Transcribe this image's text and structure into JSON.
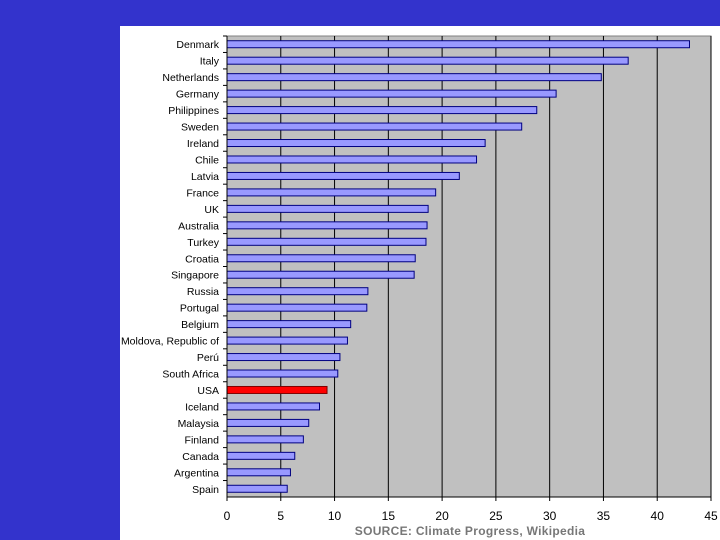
{
  "chart_data": {
    "type": "bar",
    "orientation": "horizontal",
    "title": "",
    "xlabel": "",
    "ylabel": "",
    "categories": [
      "Denmark",
      "Italy",
      "Netherlands",
      "Germany",
      "Philippines",
      "Sweden",
      "Ireland",
      "Chile",
      "Latvia",
      "France",
      "UK",
      "Australia",
      "Turkey",
      "Croatia",
      "Singapore",
      "Russia",
      "Portugal",
      "Belgium",
      "Moldova, Republic of",
      "Perú",
      "South Africa",
      "USA",
      "Iceland",
      "Malaysia",
      "Finland",
      "Canada",
      "Argentina",
      "Spain"
    ],
    "values": [
      43.0,
      37.3,
      34.8,
      30.6,
      28.8,
      27.4,
      24.0,
      23.2,
      21.6,
      19.4,
      18.7,
      18.6,
      18.5,
      17.5,
      17.4,
      13.1,
      13.0,
      11.5,
      11.2,
      10.5,
      10.3,
      9.3,
      8.6,
      7.6,
      7.1,
      6.3,
      5.9,
      5.6
    ],
    "highlight_category": "USA",
    "xlim": [
      0,
      45
    ],
    "xticks": [
      0,
      5,
      10,
      15,
      20,
      25,
      30,
      35,
      40,
      45
    ],
    "grid": "vertical",
    "legend": "none",
    "source": "SOURCE: Climate Progress, Wikipedia",
    "colors": {
      "bar": "#9999ff",
      "bar_highlight": "#ff0000",
      "bar_edge": "#000080",
      "plot_bg": "#c0c0c0",
      "band": "#3333cc"
    }
  }
}
